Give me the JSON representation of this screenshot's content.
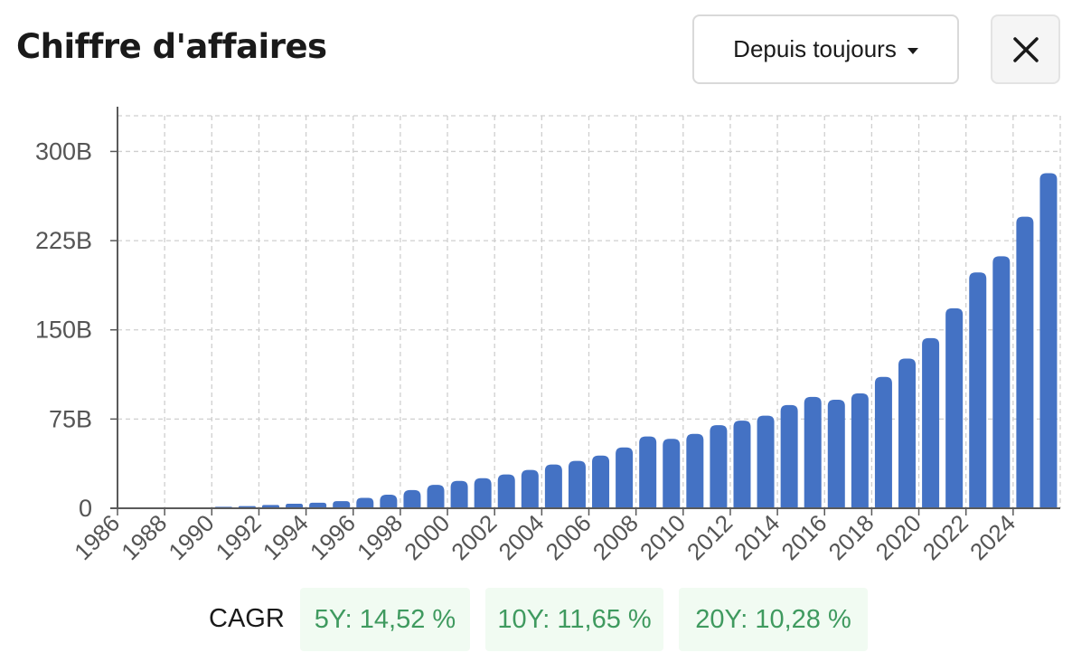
{
  "header": {
    "title": "Chiffre d'affaires",
    "period_label": "Depuis toujours",
    "close_label": "close"
  },
  "colors": {
    "bar": "#4472c4",
    "grid": "#cfcfcf",
    "axis": "#5a5a5a",
    "cagr_text": "#3f9a5f",
    "cagr_bg": "#f1fbf2"
  },
  "chart_data": {
    "type": "bar",
    "title": "",
    "xlabel": "",
    "ylabel": "",
    "ylim": [
      0,
      330
    ],
    "y_ticks": [
      0,
      75,
      150,
      225,
      300
    ],
    "y_tick_labels": [
      "0",
      "75B",
      "150B",
      "225B",
      "300B"
    ],
    "x_tick_labels": [
      "1986",
      "1988",
      "1990",
      "1992",
      "1994",
      "1996",
      "1998",
      "2000",
      "2002",
      "2004",
      "2006",
      "2008",
      "2010",
      "2012",
      "2014",
      "2016",
      "2018",
      "2020",
      "2022",
      "2024"
    ],
    "grid": true,
    "unit": "B",
    "categories": [
      "1986",
      "1987",
      "1988",
      "1989",
      "1990",
      "1991",
      "1992",
      "1993",
      "1994",
      "1995",
      "1996",
      "1997",
      "1998",
      "1999",
      "2000",
      "2001",
      "2002",
      "2003",
      "2004",
      "2005",
      "2006",
      "2007",
      "2008",
      "2009",
      "2010",
      "2011",
      "2012",
      "2013",
      "2014",
      "2015",
      "2016",
      "2017",
      "2018",
      "2019",
      "2020",
      "2021",
      "2022",
      "2023",
      "2024",
      "2025"
    ],
    "values": [
      0.2,
      0.3,
      0.6,
      0.8,
      1.2,
      1.8,
      2.8,
      3.8,
      4.7,
      6.0,
      8.7,
      11.4,
      15.3,
      19.7,
      23.0,
      25.3,
      28.4,
      32.2,
      36.8,
      39.8,
      44.3,
      51.1,
      60.4,
      58.4,
      62.5,
      69.9,
      73.7,
      77.8,
      86.8,
      93.6,
      91.2,
      96.6,
      110.4,
      125.8,
      143.0,
      168.1,
      198.3,
      211.9,
      245.1,
      281.7
    ]
  },
  "cagr": {
    "label": "CAGR",
    "items": [
      {
        "text": "5Y: 14,52 %"
      },
      {
        "text": "10Y: 11,65 %"
      },
      {
        "text": "20Y: 10,28 %"
      }
    ]
  }
}
